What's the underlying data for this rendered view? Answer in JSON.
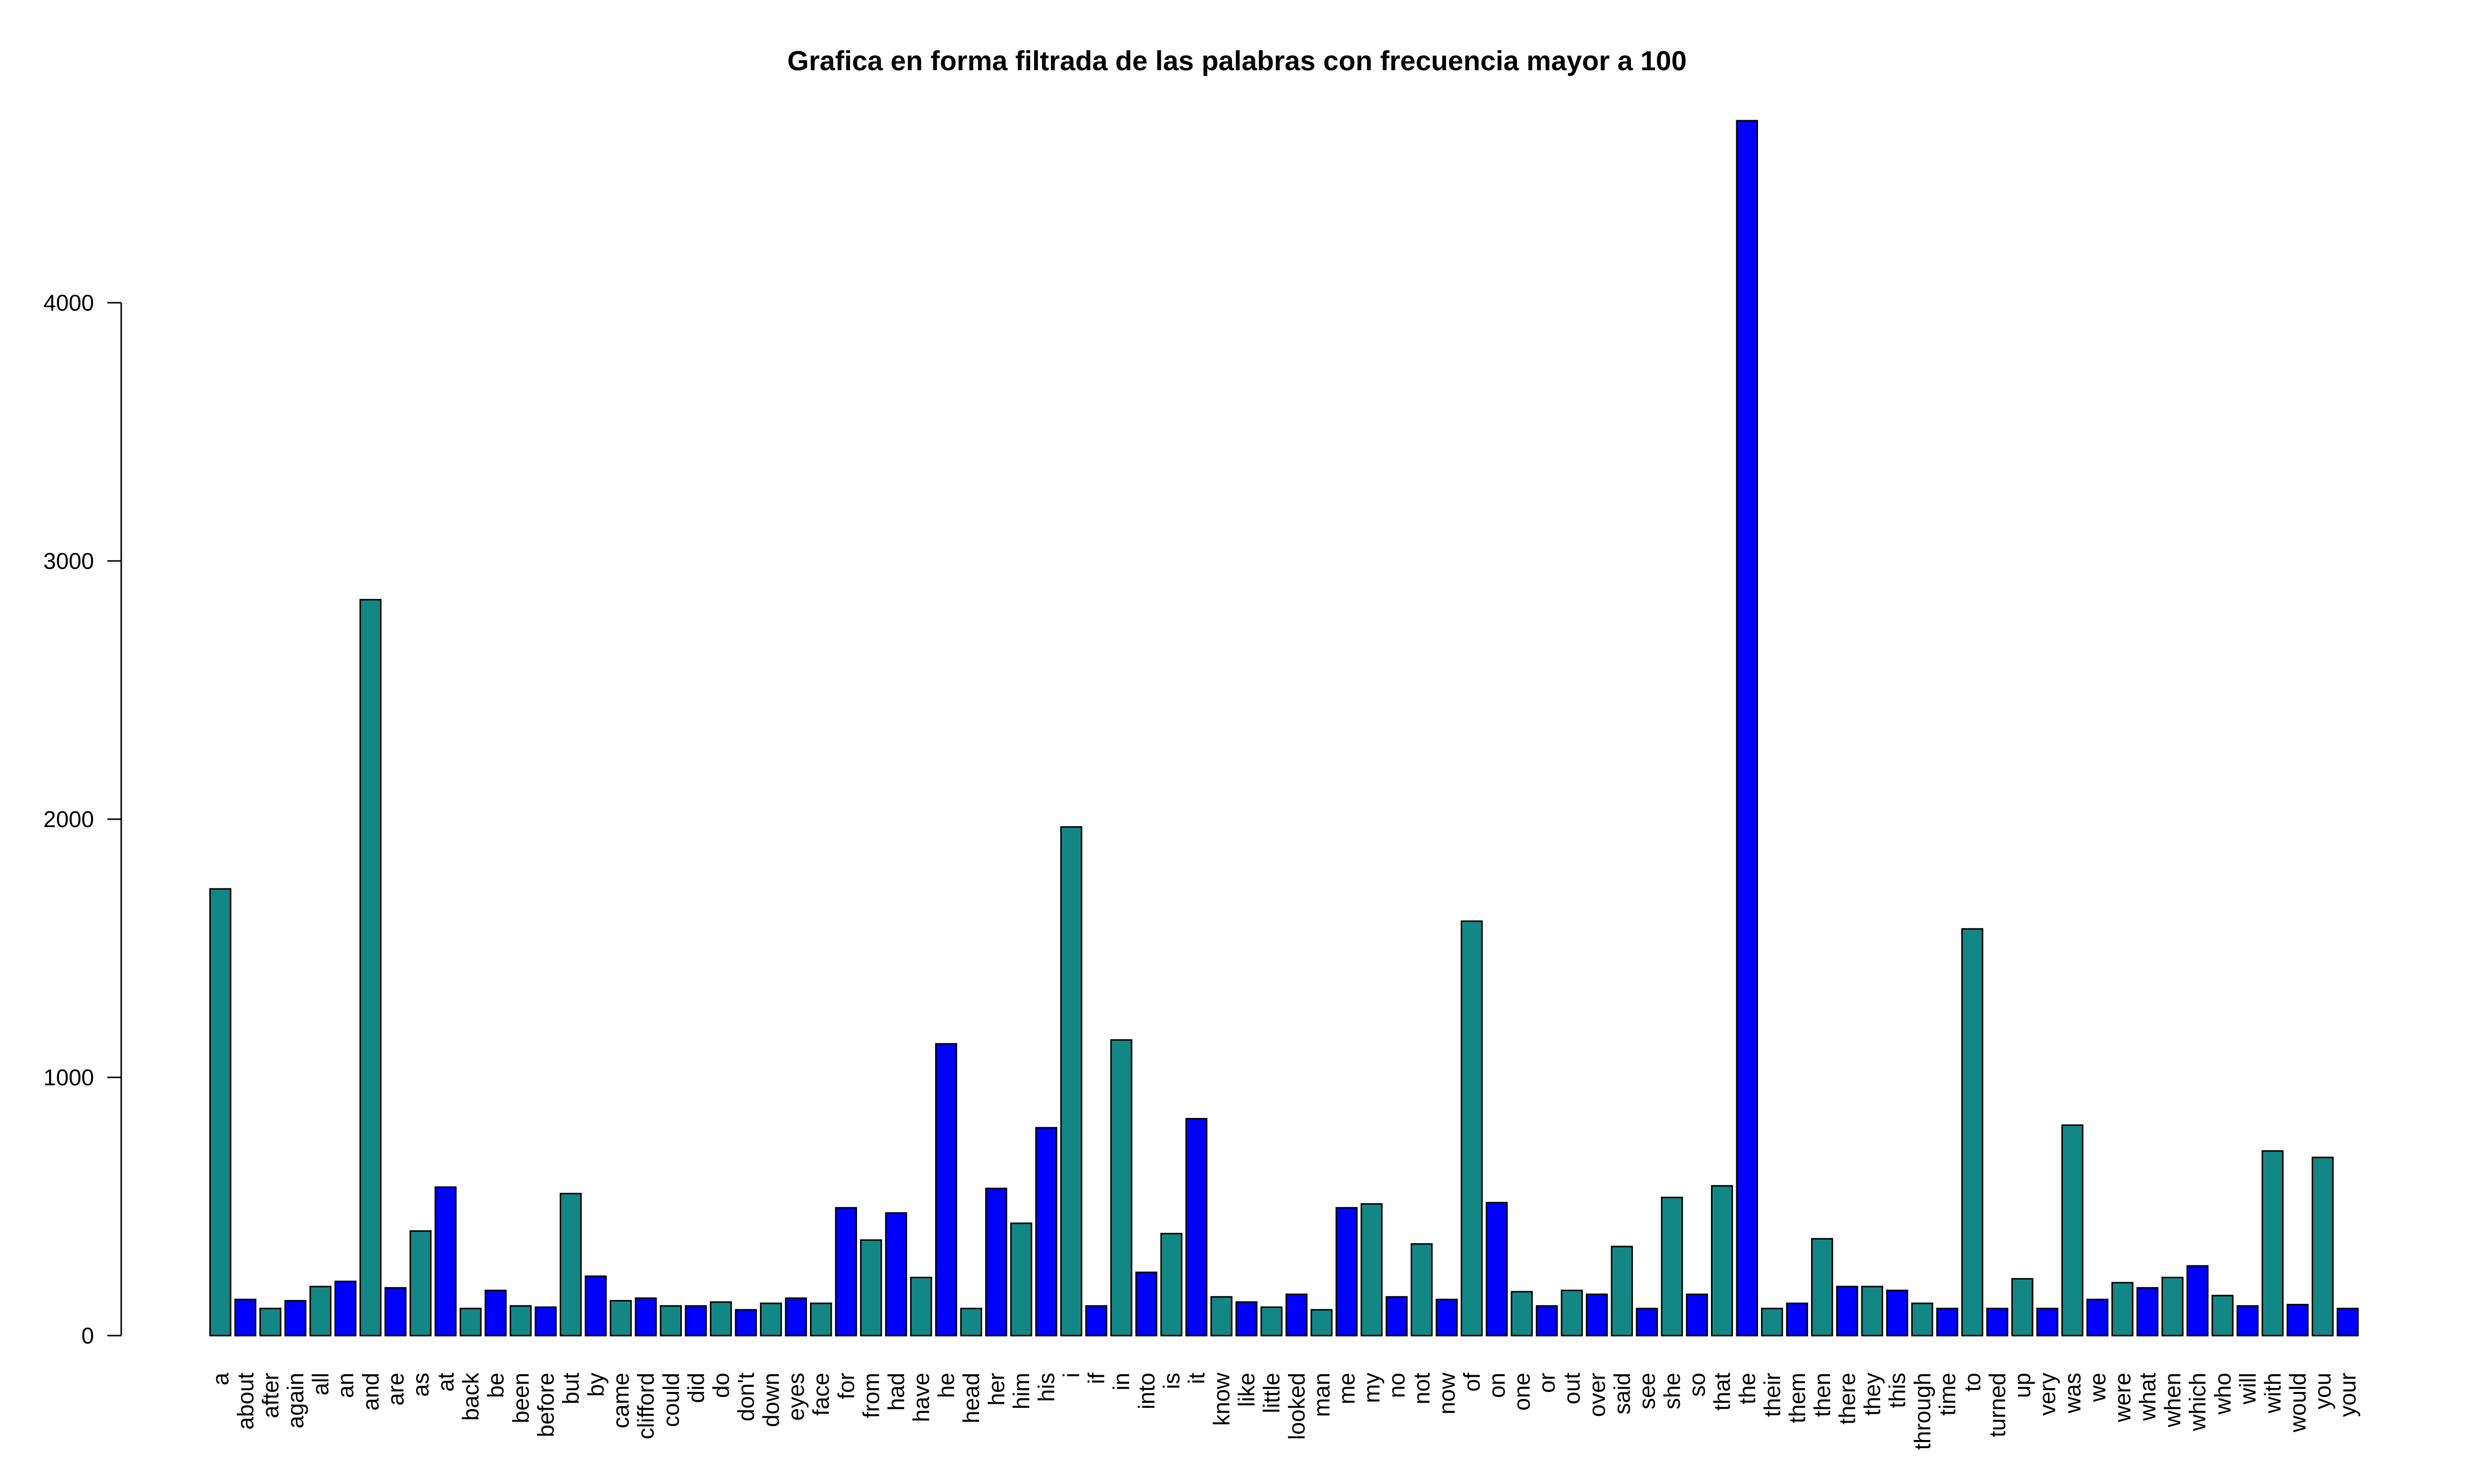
{
  "chart_data": {
    "type": "bar",
    "title": "Grafica en forma filtrada de las palabras con frecuencia mayor a 100",
    "xlabel": "",
    "ylabel": "",
    "ylim": [
      0,
      4700
    ],
    "y_ticks": [
      0,
      1000,
      2000,
      3000,
      4000
    ],
    "grid": false,
    "colors": [
      "#138785",
      "#0000ff"
    ],
    "bar_border": "#000000",
    "categories": [
      "a",
      "about",
      "after",
      "again",
      "all",
      "an",
      "and",
      "are",
      "as",
      "at",
      "back",
      "be",
      "been",
      "before",
      "but",
      "by",
      "came",
      "clifford",
      "could",
      "did",
      "do",
      "don't",
      "down",
      "eyes",
      "face",
      "for",
      "from",
      "had",
      "have",
      "he",
      "head",
      "her",
      "him",
      "his",
      "i",
      "if",
      "in",
      "into",
      "is",
      "it",
      "know",
      "like",
      "little",
      "looked",
      "man",
      "me",
      "my",
      "no",
      "not",
      "now",
      "of",
      "on",
      "one",
      "or",
      "out",
      "over",
      "said",
      "see",
      "she",
      "so",
      "that",
      "the",
      "their",
      "them",
      "then",
      "there",
      "they",
      "this",
      "through",
      "time",
      "to",
      "turned",
      "up",
      "very",
      "was",
      "we",
      "were",
      "what",
      "when",
      "which",
      "who",
      "will",
      "with",
      "would",
      "you",
      "your"
    ],
    "values": [
      1730,
      140,
      105,
      135,
      190,
      210,
      2850,
      185,
      405,
      575,
      105,
      175,
      115,
      110,
      550,
      230,
      135,
      145,
      115,
      115,
      130,
      100,
      125,
      145,
      125,
      495,
      370,
      475,
      225,
      1130,
      105,
      570,
      435,
      805,
      1970,
      115,
      1145,
      245,
      395,
      840,
      150,
      130,
      110,
      160,
      100,
      495,
      510,
      150,
      355,
      140,
      1605,
      515,
      170,
      115,
      175,
      160,
      345,
      105,
      535,
      160,
      580,
      4705,
      105,
      125,
      375,
      190,
      190,
      175,
      125,
      105,
      1575,
      105,
      220,
      105,
      815,
      140,
      205,
      185,
      225,
      270,
      155,
      115,
      715,
      120,
      690,
      105
    ],
    "bar_colors": [
      "teal",
      "blue",
      "teal",
      "blue",
      "teal",
      "blue",
      "teal",
      "blue",
      "teal",
      "blue",
      "teal",
      "blue",
      "teal",
      "blue",
      "teal",
      "blue",
      "teal",
      "blue",
      "teal",
      "blue",
      "teal",
      "blue",
      "teal",
      "blue",
      "teal",
      "blue",
      "teal",
      "blue",
      "teal",
      "blue",
      "teal",
      "blue",
      "teal",
      "blue",
      "teal",
      "blue",
      "teal",
      "blue",
      "teal",
      "blue",
      "teal",
      "blue",
      "teal",
      "blue",
      "teal",
      "blue",
      "teal",
      "blue",
      "teal",
      "blue",
      "teal",
      "blue",
      "teal",
      "blue",
      "teal",
      "blue",
      "teal",
      "blue",
      "teal",
      "blue",
      "teal",
      "blue",
      "teal",
      "blue",
      "teal",
      "blue",
      "teal",
      "blue",
      "teal",
      "blue",
      "teal",
      "blue",
      "teal",
      "blue",
      "teal",
      "blue",
      "teal",
      "blue",
      "teal",
      "blue",
      "teal",
      "blue",
      "teal",
      "blue",
      "teal",
      "blue"
    ]
  }
}
